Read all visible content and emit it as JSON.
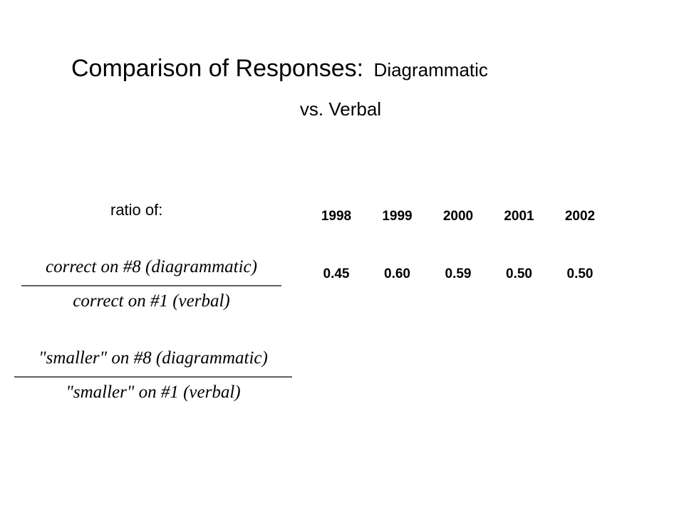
{
  "title": {
    "main": "Comparison of Responses:",
    "sub_1": "Diagrammatic",
    "sub_2": "vs. Verbal"
  },
  "table": {
    "label": "ratio of:",
    "columns": [
      "1998",
      "1999",
      "2000",
      "2001",
      "2002"
    ],
    "rows": [
      {
        "numerator": "correct on #8 (diagrammatic)",
        "denominator": "correct on #1 (verbal)",
        "values": [
          "0.45",
          "0.60",
          "0.59",
          "0.50",
          "0.50"
        ]
      },
      {
        "numerator": "\"smaller\" on #8 (diagrammatic)",
        "denominator": "\"smaller\" on #1 (verbal)"
      }
    ]
  }
}
